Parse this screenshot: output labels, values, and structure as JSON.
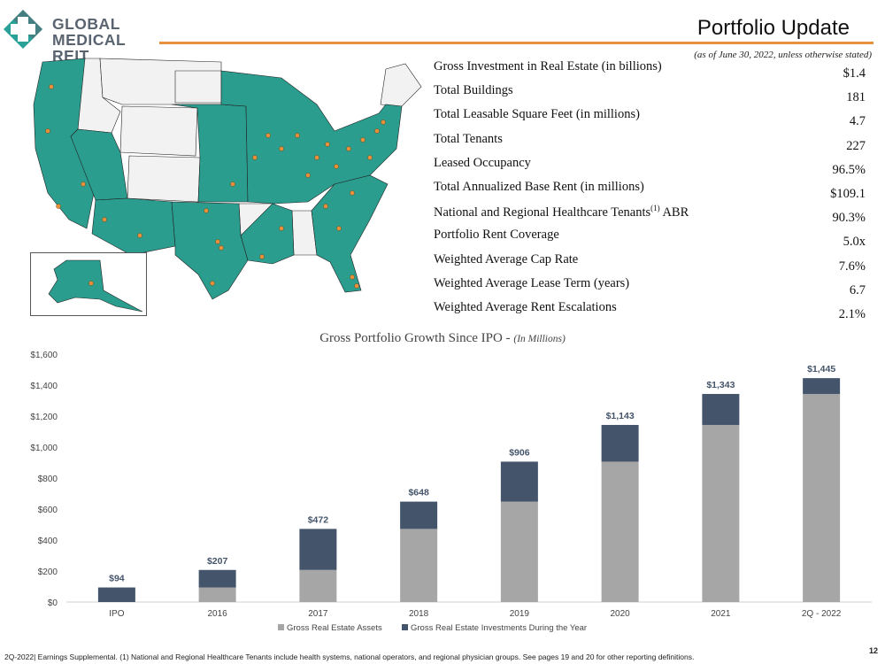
{
  "logo": {
    "line1": "GLOBAL",
    "line2": "MEDICAL REIT"
  },
  "header": {
    "title": "Portfolio Update",
    "as_of": "(as of June 30, 2022, unless otherwise stated)"
  },
  "stats": [
    {
      "label": "Gross Investment in Real Estate (in billions)",
      "value": "$1.4"
    },
    {
      "label": "Total Buildings",
      "value": "181"
    },
    {
      "label": "Total Leasable Square Feet (in millions)",
      "value": "4.7"
    },
    {
      "label": "Total Tenants",
      "value": "227"
    },
    {
      "label": "Leased Occupancy",
      "value": "96.5%"
    },
    {
      "label": "Total Annualized Base Rent (in millions)",
      "value": "$109.1"
    },
    {
      "label": "National and Regional Healthcare Tenants",
      "sup": "(1)",
      "label_suffix": " ABR",
      "value": "90.3%"
    },
    {
      "label": "Portfolio Rent Coverage",
      "value": "5.0x"
    },
    {
      "label": "Weighted Average Cap Rate",
      "value": "7.6%"
    },
    {
      "label": "Weighted Average Lease Term (years)",
      "value": "6.7"
    },
    {
      "label": "Weighted Average Rent Escalations",
      "value": "2.1%"
    }
  ],
  "colors": {
    "teal": "#2a9d8f",
    "teal_logo": "#2aa198",
    "orange": "#e8913d",
    "assets_gray": "#a6a6a6",
    "investments_navy": "#44546a",
    "nonportfolio_state": "#f2f2f2"
  },
  "chart_data": {
    "type": "bar",
    "stacked": true,
    "title": "Gross Portfolio Growth Since IPO",
    "title_unit": "(In Millions)",
    "categories": [
      "IPO",
      "2016",
      "2017",
      "2018",
      "2019",
      "2020",
      "2021",
      "2Q - 2022"
    ],
    "series": [
      {
        "name": "Gross Real Estate Assets",
        "color": "#a6a6a6",
        "values": [
          0,
          94,
          207,
          472,
          648,
          906,
          1143,
          1343
        ]
      },
      {
        "name": "Gross Real Estate Investments During the Year",
        "color": "#44546a",
        "values": [
          94,
          113,
          265,
          176,
          258,
          237,
          200,
          102
        ]
      }
    ],
    "totals_labels": [
      "$94",
      "$207",
      "$472",
      "$648",
      "$906",
      "$1,143",
      "$1,343",
      "$1,445"
    ],
    "totals": [
      94,
      207,
      472,
      648,
      906,
      1143,
      1343,
      1445
    ],
    "yticks": [
      0,
      200,
      400,
      600,
      800,
      1000,
      1200,
      1400,
      1600
    ],
    "ytick_labels": [
      "$0",
      "$200",
      "$400",
      "$600",
      "$800",
      "$1,000",
      "$1,200",
      "$1,400",
      "$1,600"
    ],
    "ylim": [
      0,
      1600
    ],
    "legend": "bottom",
    "grid": false
  },
  "footer": {
    "text": "2Q-2022| Earnings Supplemental.  (1) National and Regional Healthcare Tenants include health systems, national operators, and regional physician groups.  See pages 19 and 20 for other reporting definitions.",
    "page": "12"
  }
}
